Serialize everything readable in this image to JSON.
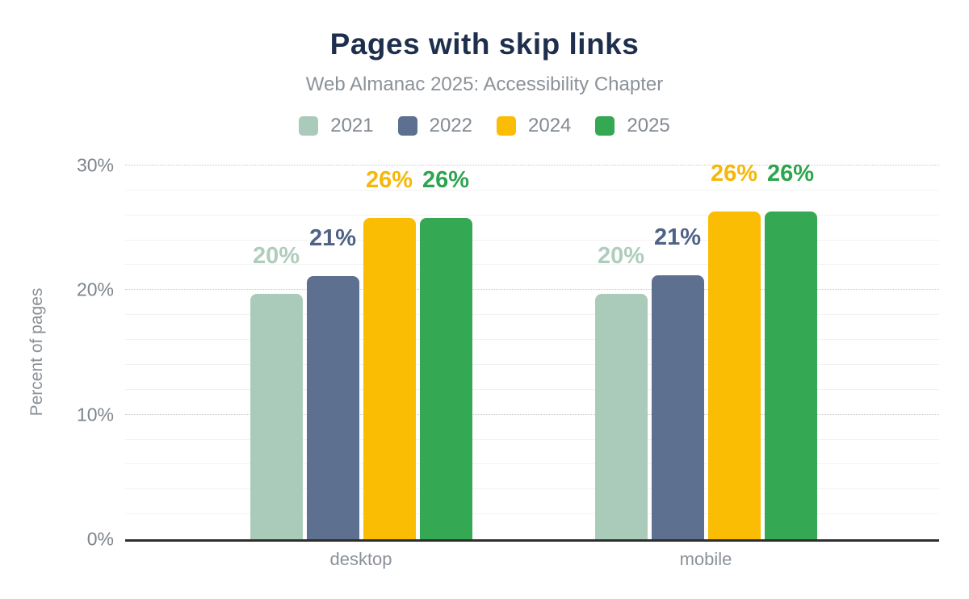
{
  "chart_data": {
    "type": "bar",
    "title": "Pages with skip links",
    "subtitle": "Web Almanac 2025: Accessibility Chapter",
    "categories": [
      "desktop",
      "mobile"
    ],
    "series": [
      {
        "name": "2021",
        "color": "#abcbba",
        "label_color": "#aecdbd",
        "values": [
          19.7,
          19.7
        ],
        "labels": [
          "20%",
          "20%"
        ]
      },
      {
        "name": "2022",
        "color": "#5e7090",
        "label_color": "#4f6285",
        "values": [
          21.1,
          21.2
        ],
        "labels": [
          "21%",
          "21%"
        ]
      },
      {
        "name": "2024",
        "color": "#fabd03",
        "label_color": "#f5b70a",
        "values": [
          25.8,
          26.3
        ],
        "labels": [
          "26%",
          "26%"
        ]
      },
      {
        "name": "2025",
        "color": "#34a853",
        "label_color": "#2da44e",
        "values": [
          25.8,
          26.3
        ],
        "labels": [
          "26%",
          "26%"
        ]
      }
    ],
    "xlabel": "",
    "ylabel": "Percent of pages",
    "ylim": [
      0,
      30
    ],
    "y_major_ticks": [
      0,
      10,
      20,
      30
    ],
    "y_tick_labels": [
      "0%",
      "10%",
      "20%",
      "30%"
    ],
    "y_minor_step": 2,
    "grid": true,
    "legend_position": "top"
  },
  "colors": {
    "title": "#1e2f4d",
    "subtitle_text": "#8b9198",
    "axis_text": "#7d848b",
    "axis_line": "#2e2e2e",
    "major_gridline": "#c9c9c9",
    "minor_gridline": "#f2f2f2"
  }
}
